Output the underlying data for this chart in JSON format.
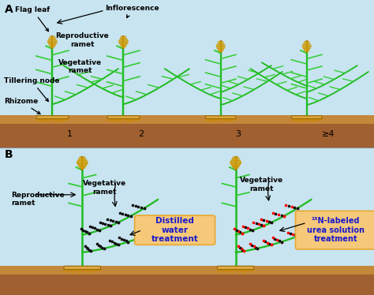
{
  "bg_sky": "#c8e4f0",
  "bg_soil": "#a06030",
  "bg_soil_light": "#c4883a",
  "green_stem": "#22bb22",
  "green_leaf": "#33cc33",
  "gold_ear": "#cc9900",
  "gold_dark": "#996600",
  "gold_light": "#ddaa44",
  "root_color": "#cc8800",
  "box_color": "#f5c87a",
  "box_border": "#e8a830",
  "label_blue": "#1a1acc",
  "numbers": [
    "1",
    "2",
    "3",
    "≥4"
  ],
  "label_distilled": "Distilled\nwater\ntreatment",
  "label_15N": "¹⁵N-labeled\nurea solution\ntreatment"
}
